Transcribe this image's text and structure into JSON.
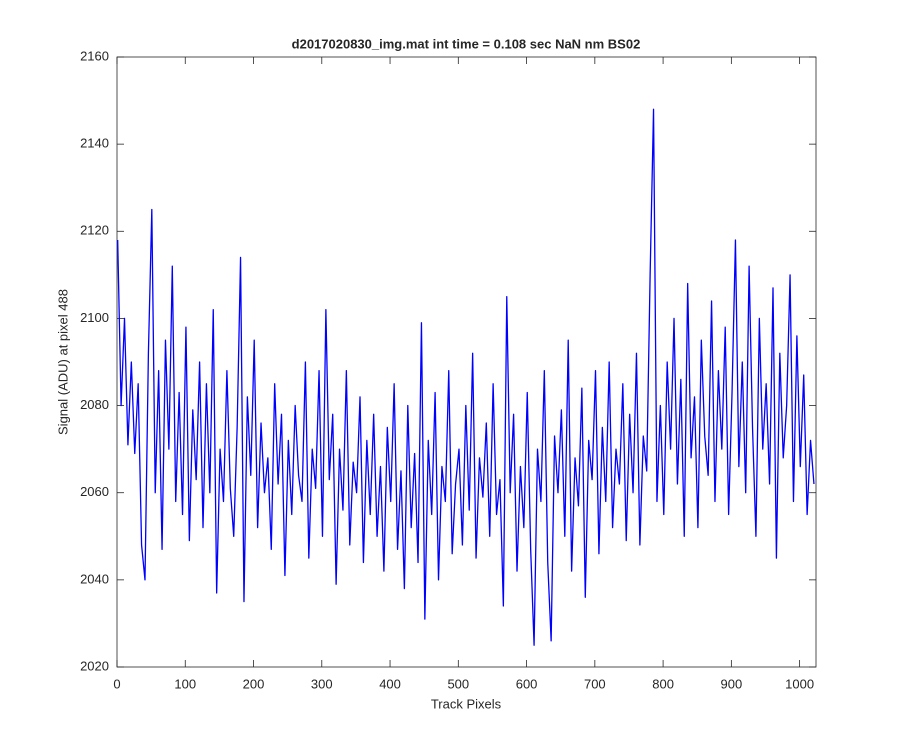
{
  "chart_data": {
    "type": "line",
    "title": "d2017020830_img.mat int time = 0.108 sec  NaN nm BS02",
    "x_label": "Track Pixels",
    "y_label": "Signal (ADU) at pixel 488",
    "color": "#0000ff",
    "xlim": [
      0,
      1024
    ],
    "ylim": [
      2020,
      2160
    ],
    "xticks": [
      0,
      100,
      200,
      300,
      400,
      500,
      600,
      700,
      800,
      900,
      1000
    ],
    "yticks": [
      2020,
      2040,
      2060,
      2080,
      2100,
      2120,
      2140,
      2160
    ],
    "x": [
      1,
      6,
      11,
      16,
      21,
      26,
      31,
      36,
      41,
      46,
      51,
      56,
      61,
      66,
      71,
      76,
      81,
      86,
      91,
      96,
      101,
      106,
      111,
      116,
      121,
      126,
      131,
      136,
      141,
      146,
      151,
      156,
      161,
      166,
      171,
      176,
      181,
      186,
      191,
      196,
      201,
      206,
      211,
      216,
      221,
      226,
      231,
      236,
      241,
      246,
      251,
      256,
      261,
      266,
      271,
      276,
      281,
      286,
      291,
      296,
      301,
      306,
      311,
      316,
      321,
      326,
      331,
      336,
      341,
      346,
      351,
      356,
      361,
      366,
      371,
      376,
      381,
      386,
      391,
      396,
      401,
      406,
      411,
      416,
      421,
      426,
      431,
      436,
      441,
      446,
      451,
      456,
      461,
      466,
      471,
      476,
      481,
      486,
      491,
      496,
      501,
      506,
      511,
      516,
      521,
      526,
      531,
      536,
      541,
      546,
      551,
      556,
      561,
      566,
      571,
      576,
      581,
      586,
      591,
      596,
      601,
      606,
      611,
      616,
      621,
      626,
      631,
      636,
      641,
      646,
      651,
      656,
      661,
      666,
      671,
      676,
      681,
      686,
      691,
      696,
      701,
      706,
      711,
      716,
      721,
      726,
      731,
      736,
      741,
      746,
      751,
      756,
      761,
      766,
      771,
      776,
      781,
      786,
      791,
      796,
      801,
      806,
      811,
      816,
      821,
      826,
      831,
      836,
      841,
      846,
      851,
      856,
      861,
      866,
      871,
      876,
      881,
      886,
      891,
      896,
      901,
      906,
      911,
      916,
      921,
      926,
      931,
      936,
      941,
      946,
      951,
      956,
      961,
      966,
      971,
      976,
      981,
      986,
      991,
      996,
      1001,
      1006,
      1011,
      1016,
      1021
    ],
    "values": [
      2118,
      2080,
      2100,
      2071,
      2090,
      2069,
      2085,
      2048,
      2040,
      2092,
      2125,
      2060,
      2088,
      2047,
      2095,
      2070,
      2112,
      2058,
      2083,
      2055,
      2098,
      2049,
      2079,
      2063,
      2090,
      2052,
      2085,
      2060,
      2102,
      2037,
      2070,
      2058,
      2088,
      2061,
      2050,
      2075,
      2114,
      2035,
      2082,
      2064,
      2095,
      2052,
      2076,
      2060,
      2068,
      2047,
      2085,
      2062,
      2078,
      2041,
      2072,
      2055,
      2080,
      2064,
      2058,
      2090,
      2045,
      2070,
      2061,
      2088,
      2050,
      2102,
      2063,
      2078,
      2039,
      2070,
      2056,
      2088,
      2048,
      2067,
      2060,
      2082,
      2044,
      2072,
      2055,
      2078,
      2050,
      2066,
      2042,
      2075,
      2058,
      2085,
      2047,
      2065,
      2038,
      2080,
      2052,
      2069,
      2044,
      2099,
      2031,
      2072,
      2055,
      2083,
      2040,
      2066,
      2058,
      2088,
      2046,
      2062,
      2070,
      2048,
      2080,
      2056,
      2092,
      2045,
      2068,
      2059,
      2076,
      2050,
      2085,
      2055,
      2063,
      2034,
      2105,
      2060,
      2078,
      2042,
      2066,
      2052,
      2083,
      2047,
      2025,
      2070,
      2058,
      2088,
      2044,
      2026,
      2073,
      2060,
      2079,
      2050,
      2095,
      2042,
      2068,
      2057,
      2084,
      2036,
      2072,
      2063,
      2088,
      2046,
      2075,
      2058,
      2090,
      2052,
      2070,
      2062,
      2085,
      2049,
      2078,
      2060,
      2092,
      2048,
      2073,
      2065,
      2110,
      2148,
      2058,
      2080,
      2055,
      2090,
      2070,
      2100,
      2062,
      2086,
      2050,
      2108,
      2068,
      2082,
      2052,
      2095,
      2073,
      2064,
      2104,
      2058,
      2088,
      2070,
      2098,
      2055,
      2083,
      2118,
      2066,
      2090,
      2060,
      2112,
      2075,
      2050,
      2100,
      2070,
      2085,
      2062,
      2107,
      2045,
      2092,
      2068,
      2080,
      2110,
      2058,
      2096,
      2066,
      2087,
      2055,
      2072,
      2062
    ]
  }
}
